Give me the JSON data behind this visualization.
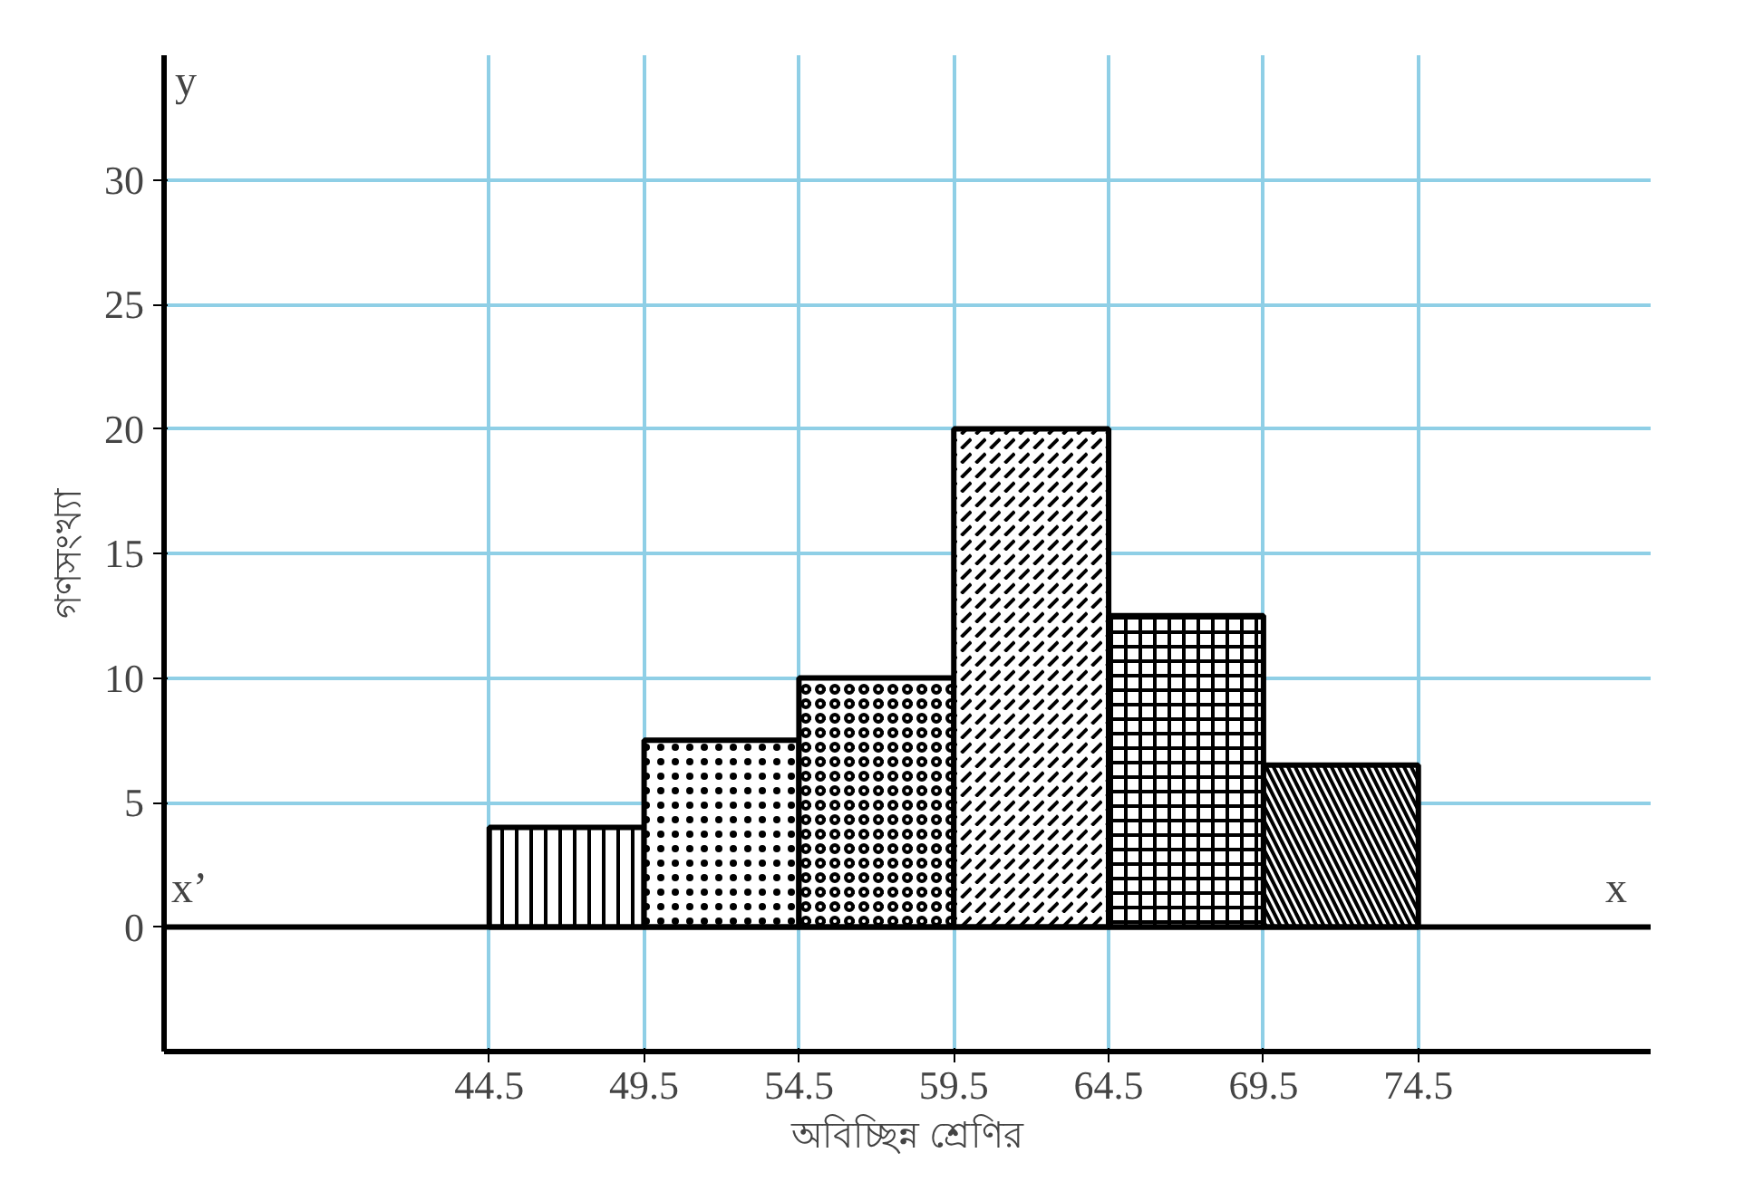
{
  "chart_data": {
    "type": "histogram",
    "xlabel": "অবিচ্ছিন্ন শ্রেণির",
    "ylabel": "গণসংখ্যা",
    "bins": [
      44.5,
      49.5,
      54.5,
      59.5,
      64.5,
      69.5,
      74.5
    ],
    "values": [
      4,
      7.5,
      10,
      20,
      12.5,
      6.5
    ],
    "color": "#000000",
    "xlim": [
      34,
      82
    ],
    "ylim": [
      -5,
      35
    ],
    "xticks": [
      44.5,
      49.5,
      54.5,
      59.5,
      64.5,
      69.5,
      74.5
    ],
    "yticks": [
      0,
      5,
      10,
      15,
      20,
      25,
      30
    ],
    "grid": true,
    "annotations": [
      "x",
      "x’",
      "y"
    ]
  }
}
